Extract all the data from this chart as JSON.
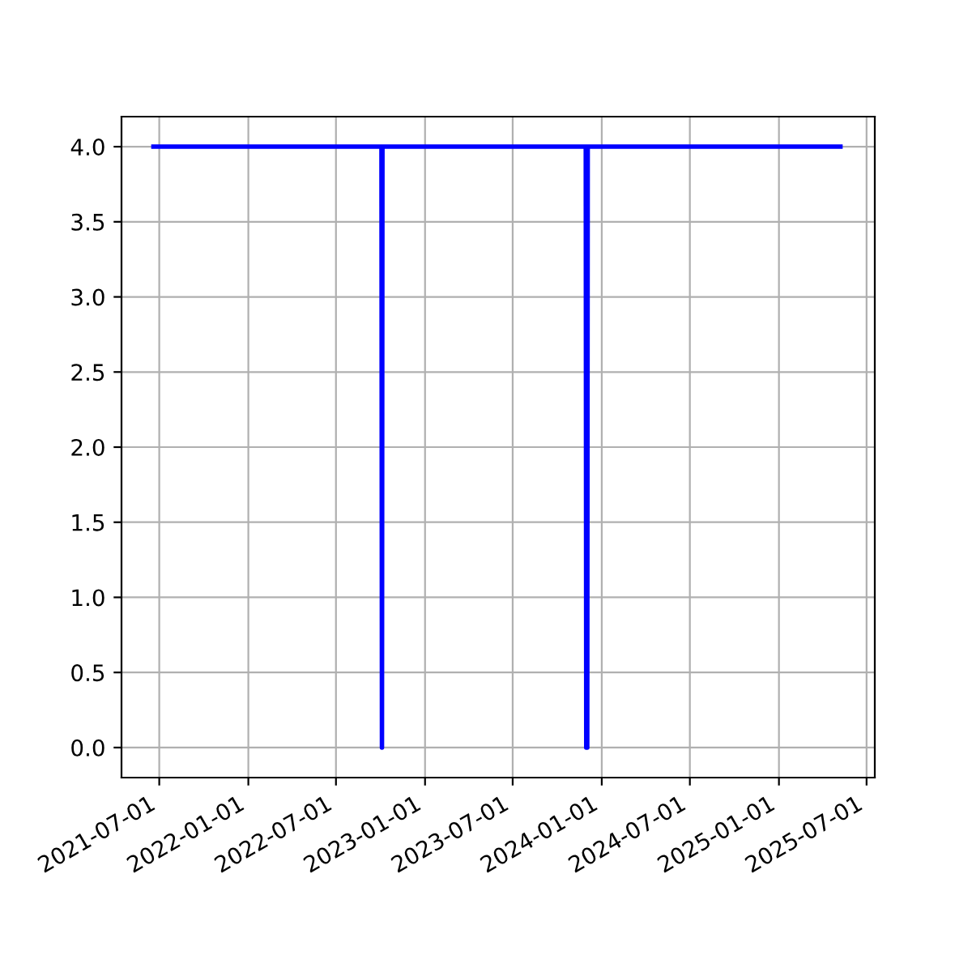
{
  "chart_data": {
    "type": "line",
    "x": [
      "2021-06-19",
      "2022-10-03",
      "2022-10-04",
      "2022-10-05",
      "2023-11-29",
      "2023-11-30",
      "2023-12-01",
      "2023-12-02",
      "2023-12-03",
      "2025-05-08"
    ],
    "series": [
      {
        "color": "#0000ff",
        "values": [
          4,
          4,
          0,
          4,
          4,
          0,
          4,
          0,
          4,
          4
        ]
      }
    ],
    "xlim": [
      "2021-04-14",
      "2025-07-18"
    ],
    "xticks": [
      "2021-07-01",
      "2022-01-01",
      "2022-07-01",
      "2023-01-01",
      "2023-07-01",
      "2024-01-01",
      "2024-07-01",
      "2025-01-01",
      "2025-07-01"
    ],
    "ylim": [
      -0.2,
      4.2
    ],
    "yticks": [
      {
        "value": 0,
        "label": "0.0"
      },
      {
        "value": 0.5,
        "label": "0.5"
      },
      {
        "value": 1,
        "label": "1.0"
      },
      {
        "value": 1.5,
        "label": "1.5"
      },
      {
        "value": 2,
        "label": "2.0"
      },
      {
        "value": 2.5,
        "label": "2.5"
      },
      {
        "value": 3,
        "label": "3.0"
      },
      {
        "value": 3.5,
        "label": "3.5"
      },
      {
        "value": 4,
        "label": "4.0"
      }
    ],
    "grid": true,
    "line_style": "solid",
    "marker": "none"
  }
}
